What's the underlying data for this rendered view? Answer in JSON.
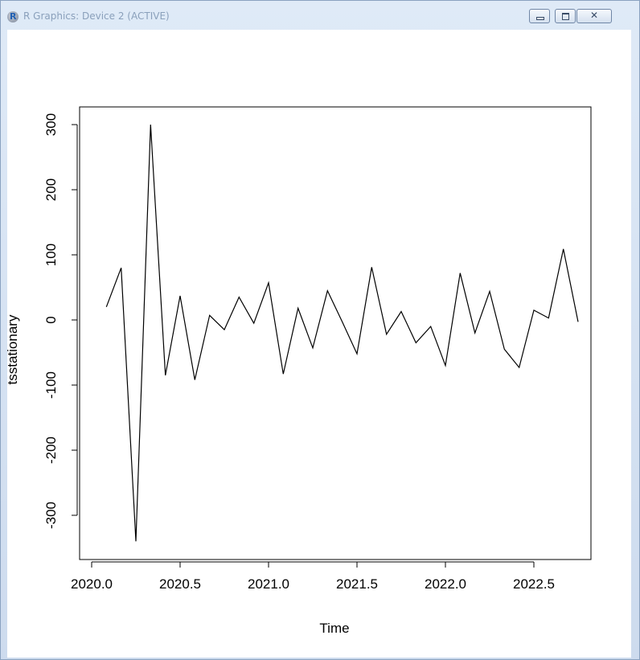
{
  "window": {
    "title": "R Graphics: Device 2 (ACTIVE)"
  },
  "icons": {
    "app": "r-logo-icon",
    "minimize": "minimize-icon",
    "maximize": "maximize-icon",
    "close": "close-icon"
  },
  "chart_data": {
    "type": "line",
    "xlabel": "Time",
    "ylabel": "tsstationary",
    "xlim": [
      2020.0,
      2022.85
    ],
    "ylim": [
      -365,
      325
    ],
    "xticks": [
      2020.0,
      2020.5,
      2021.0,
      2021.5,
      2022.0,
      2022.5
    ],
    "xtick_labels": [
      "2020.0",
      "2020.5",
      "2021.0",
      "2021.5",
      "2022.0",
      "2022.5"
    ],
    "yticks": [
      -300,
      -200,
      -100,
      0,
      100,
      200,
      300
    ],
    "ytick_labels": [
      "-300",
      "-200",
      "-100",
      "0",
      "100",
      "200",
      "300"
    ],
    "x": [
      2020.083,
      2020.167,
      2020.25,
      2020.333,
      2020.417,
      2020.5,
      2020.583,
      2020.667,
      2020.75,
      2020.833,
      2020.917,
      2021.0,
      2021.083,
      2021.167,
      2021.25,
      2021.333,
      2021.417,
      2021.5,
      2021.583,
      2021.667,
      2021.75,
      2021.833,
      2021.917,
      2022.0,
      2022.083,
      2022.167,
      2022.25,
      2022.333,
      2022.417,
      2022.5,
      2022.583,
      2022.667,
      2022.75
    ],
    "y": [
      20,
      80,
      -340,
      300,
      -85,
      37,
      -92,
      7,
      -15,
      35,
      -5,
      57,
      -83,
      18,
      -43,
      45,
      -3,
      -52,
      81,
      -22,
      13,
      -35,
      -10,
      -70,
      72,
      -20,
      44,
      -45,
      -73,
      15,
      3,
      109,
      -3
    ],
    "grid": false,
    "line_color": "#000000"
  }
}
